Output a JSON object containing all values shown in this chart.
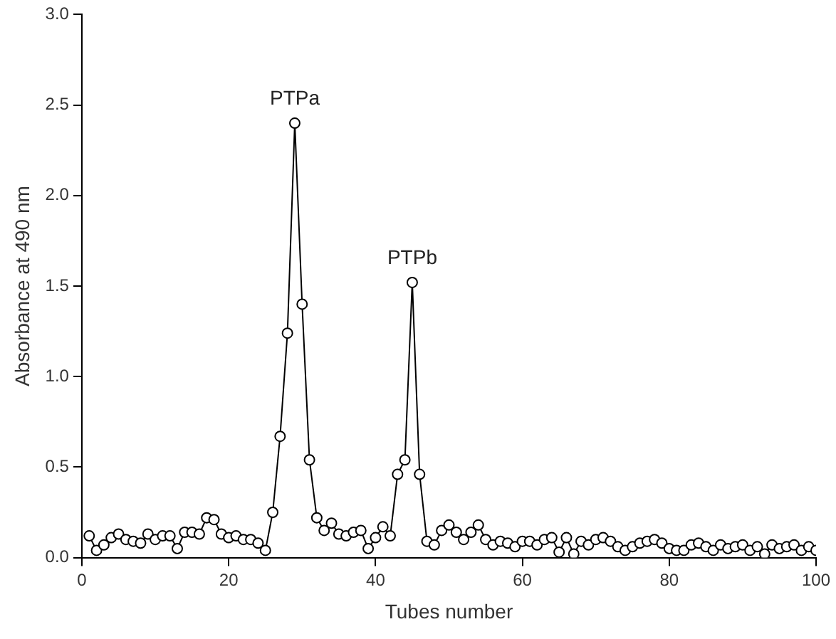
{
  "chart_data": {
    "type": "line",
    "xlabel": "Tubes number",
    "ylabel": "Absorbance at 490 nm",
    "xlim": [
      0,
      100
    ],
    "xticks": [
      0,
      20,
      40,
      60,
      80,
      100
    ],
    "ylim": [
      0,
      3
    ],
    "yticks": [
      {
        "value": 0,
        "label": "0.0"
      },
      {
        "value": 0.5,
        "label": "0.5"
      },
      {
        "value": 1,
        "label": "1.0"
      },
      {
        "value": 1.5,
        "label": "1.5"
      },
      {
        "value": 2,
        "label": "2.0"
      },
      {
        "value": 2.5,
        "label": "2.5"
      },
      {
        "value": 3,
        "label": "3.0"
      }
    ],
    "grid": false,
    "legend": false,
    "marker": "circle",
    "line_style": "solid",
    "x": [
      1,
      2,
      3,
      4,
      5,
      6,
      7,
      8,
      9,
      10,
      11,
      12,
      13,
      14,
      15,
      16,
      17,
      18,
      19,
      20,
      21,
      22,
      23,
      24,
      25,
      26,
      27,
      28,
      29,
      30,
      31,
      32,
      33,
      34,
      35,
      36,
      37,
      38,
      39,
      40,
      41,
      42,
      43,
      44,
      45,
      46,
      47,
      48,
      49,
      50,
      51,
      52,
      53,
      54,
      55,
      56,
      57,
      58,
      59,
      60,
      61,
      62,
      63,
      64,
      65,
      66,
      67,
      68,
      69,
      70,
      71,
      72,
      73,
      74,
      75,
      76,
      77,
      78,
      79,
      80,
      81,
      82,
      83,
      84,
      85,
      86,
      87,
      88,
      89,
      90,
      91,
      92,
      93,
      94,
      95,
      96,
      97,
      98,
      99,
      100
    ],
    "series": [
      {
        "color": "#000000",
        "values": [
          0.12,
          0.04,
          0.07,
          0.11,
          0.13,
          0.1,
          0.09,
          0.08,
          0.13,
          0.1,
          0.12,
          0.12,
          0.05,
          0.14,
          0.14,
          0.13,
          0.22,
          0.21,
          0.13,
          0.11,
          0.12,
          0.1,
          0.1,
          0.08,
          0.04,
          0.25,
          0.67,
          1.24,
          2.4,
          1.4,
          0.54,
          0.22,
          0.15,
          0.19,
          0.13,
          0.12,
          0.14,
          0.15,
          0.05,
          0.11,
          0.17,
          0.12,
          0.46,
          0.54,
          1.52,
          0.46,
          0.09,
          0.07,
          0.15,
          0.18,
          0.14,
          0.1,
          0.14,
          0.18,
          0.1,
          0.07,
          0.09,
          0.08,
          0.06,
          0.09,
          0.09,
          0.07,
          0.1,
          0.11,
          0.03,
          0.11,
          0.02,
          0.09,
          0.07,
          0.1,
          0.11,
          0.09,
          0.06,
          0.04,
          0.06,
          0.08,
          0.09,
          0.1,
          0.08,
          0.05,
          0.04,
          0.04,
          0.07,
          0.08,
          0.06,
          0.04,
          0.07,
          0.05,
          0.06,
          0.07,
          0.04,
          0.06,
          0.02,
          0.07,
          0.05,
          0.06,
          0.07,
          0.04,
          0.06,
          0.04
        ]
      }
    ],
    "annotations": [
      {
        "text": "PTPa",
        "x": 29,
        "y": 2.4
      },
      {
        "text": "PTPb",
        "x": 45,
        "y": 1.52
      }
    ]
  }
}
